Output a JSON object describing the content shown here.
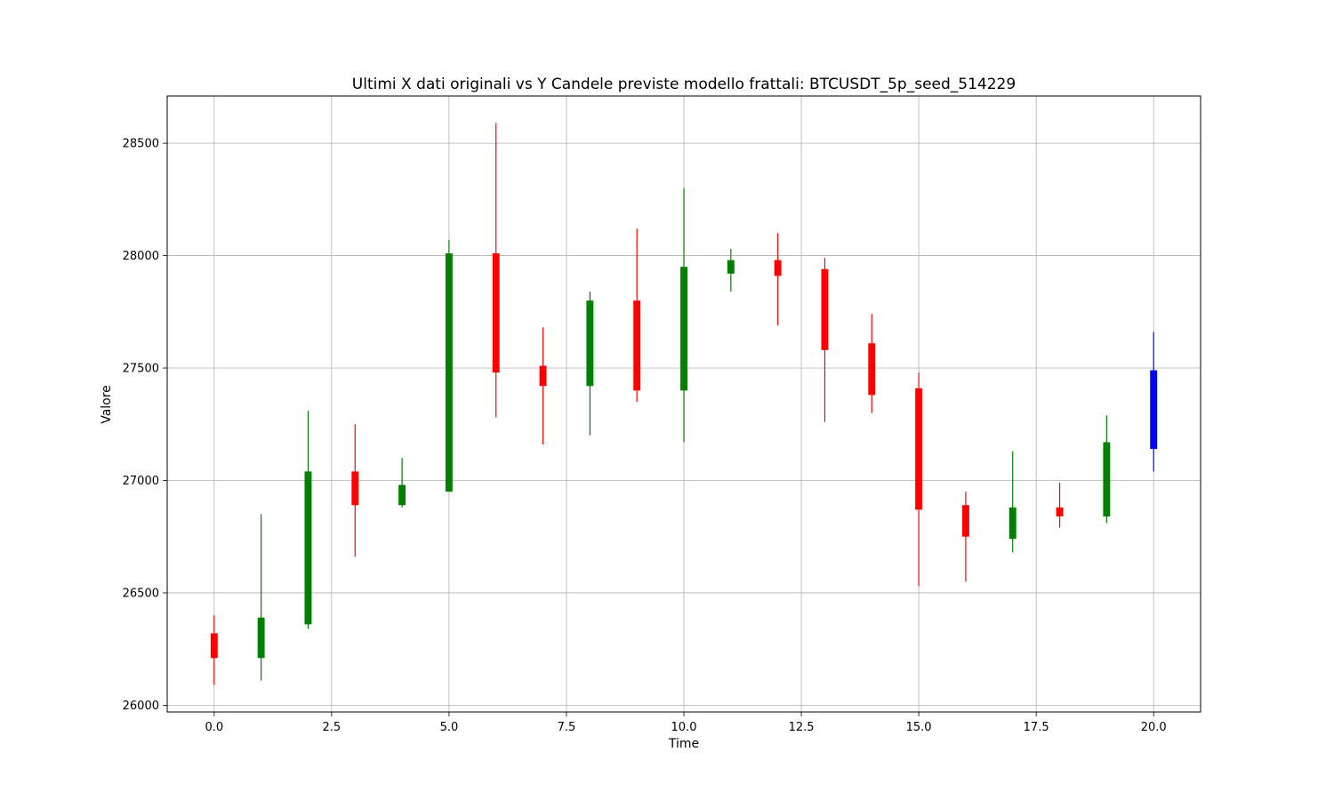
{
  "chart_data": {
    "type": "candlestick",
    "title": "Ultimi X dati originali vs Y Candele previste modello frattali: BTCUSDT_5p_seed_514229",
    "xlabel": "Time",
    "ylabel": "Valore",
    "xlim": [
      -1,
      21
    ],
    "ylim": [
      25970,
      28710
    ],
    "xticks": [
      0.0,
      2.5,
      5.0,
      7.5,
      10.0,
      12.5,
      15.0,
      17.5,
      20.0
    ],
    "xtick_labels": [
      "0.0",
      "2.5",
      "5.0",
      "7.5",
      "10.0",
      "12.5",
      "15.0",
      "17.5",
      "20.0"
    ],
    "yticks": [
      26000,
      26500,
      27000,
      27500,
      28000,
      28500
    ],
    "ytick_labels": [
      "26000",
      "26500",
      "27000",
      "27500",
      "28000",
      "28500"
    ],
    "grid": true,
    "colors": {
      "up": "#008000",
      "down": "#ff0000",
      "forecast": "#0000ff"
    },
    "candles": [
      {
        "t": 0,
        "open": 26320,
        "close": 26210,
        "high": 26400,
        "low": 26090,
        "kind": "down"
      },
      {
        "t": 1,
        "open": 26210,
        "close": 26390,
        "high": 26850,
        "low": 26110,
        "kind": "up"
      },
      {
        "t": 2,
        "open": 26360,
        "close": 27040,
        "high": 27310,
        "low": 26340,
        "kind": "up"
      },
      {
        "t": 3,
        "open": 27040,
        "close": 26890,
        "high": 27250,
        "low": 26660,
        "kind": "down"
      },
      {
        "t": 4,
        "open": 26890,
        "close": 26980,
        "high": 27100,
        "low": 26880,
        "kind": "up"
      },
      {
        "t": 5,
        "open": 26950,
        "close": 28010,
        "high": 28070,
        "low": 26950,
        "kind": "up"
      },
      {
        "t": 6,
        "open": 28010,
        "close": 27480,
        "high": 28590,
        "low": 27280,
        "kind": "down"
      },
      {
        "t": 7,
        "open": 27510,
        "close": 27420,
        "high": 27680,
        "low": 27160,
        "kind": "down"
      },
      {
        "t": 8,
        "open": 27420,
        "close": 27800,
        "high": 27840,
        "low": 27200,
        "kind": "up"
      },
      {
        "t": 9,
        "open": 27800,
        "close": 27400,
        "high": 28120,
        "low": 27350,
        "kind": "down"
      },
      {
        "t": 10,
        "open": 27400,
        "close": 27950,
        "high": 28300,
        "low": 27170,
        "kind": "up"
      },
      {
        "t": 11,
        "open": 27920,
        "close": 27980,
        "high": 28030,
        "low": 27840,
        "kind": "up"
      },
      {
        "t": 12,
        "open": 27980,
        "close": 27910,
        "high": 28100,
        "low": 27690,
        "kind": "down"
      },
      {
        "t": 13,
        "open": 27940,
        "close": 27580,
        "high": 27990,
        "low": 27260,
        "kind": "down"
      },
      {
        "t": 14,
        "open": 27610,
        "close": 27380,
        "high": 27740,
        "low": 27300,
        "kind": "down"
      },
      {
        "t": 15,
        "open": 27410,
        "close": 26870,
        "high": 27480,
        "low": 26530,
        "kind": "down"
      },
      {
        "t": 16,
        "open": 26890,
        "close": 26750,
        "high": 26950,
        "low": 26550,
        "kind": "down"
      },
      {
        "t": 17,
        "open": 26740,
        "close": 26880,
        "high": 27130,
        "low": 26680,
        "kind": "up"
      },
      {
        "t": 18,
        "open": 26880,
        "close": 26840,
        "high": 26990,
        "low": 26790,
        "kind": "down"
      },
      {
        "t": 19,
        "open": 26840,
        "close": 27170,
        "high": 27290,
        "low": 26810,
        "kind": "up"
      },
      {
        "t": 20,
        "open": 27140,
        "close": 27490,
        "high": 27660,
        "low": 27040,
        "kind": "forecast"
      }
    ]
  }
}
